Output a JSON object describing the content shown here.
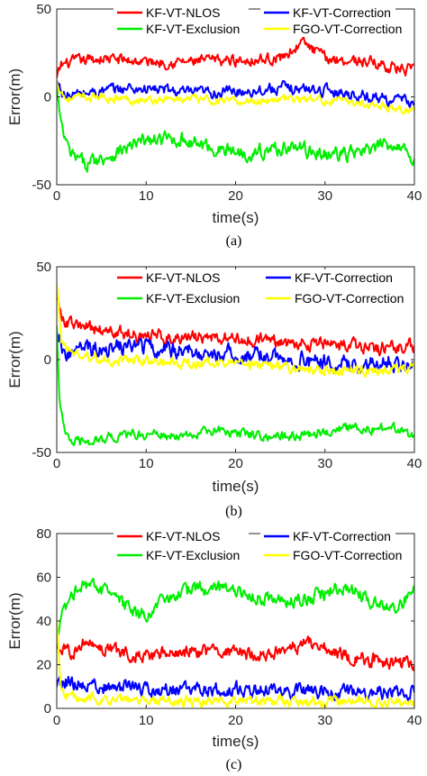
{
  "chart_data": [
    {
      "type": "line",
      "caption": "(a)",
      "xlabel": "time(s)",
      "ylabel": "Error(m)",
      "xlim": [
        0,
        40
      ],
      "ylim": [
        -50,
        50
      ],
      "xticks": [
        0,
        10,
        20,
        30,
        40
      ],
      "yticks": [
        -50,
        0,
        50
      ],
      "grid": false,
      "legend": "top",
      "legend_columns": 2,
      "series": [
        {
          "name": "KF-VT-NLOS",
          "color": "#ff0000",
          "noise": 3.5,
          "points": [
            [
              0,
              10
            ],
            [
              0.5,
              18
            ],
            [
              2,
              20
            ],
            [
              5,
              22
            ],
            [
              10,
              20
            ],
            [
              15,
              20
            ],
            [
              20,
              21
            ],
            [
              25,
              22
            ],
            [
              27.5,
              31
            ],
            [
              30,
              22
            ],
            [
              35,
              20
            ],
            [
              40,
              14
            ]
          ]
        },
        {
          "name": "KF-VT-Correction",
          "color": "#0000ff",
          "noise": 3.5,
          "points": [
            [
              0,
              8
            ],
            [
              1,
              0
            ],
            [
              3,
              2
            ],
            [
              8,
              5
            ],
            [
              12,
              4
            ],
            [
              15,
              2
            ],
            [
              20,
              3
            ],
            [
              25,
              5
            ],
            [
              30,
              4
            ],
            [
              35,
              0
            ],
            [
              40,
              -3
            ]
          ]
        },
        {
          "name": "KF-VT-Exclusion",
          "color": "#00ee00",
          "noise": 4.5,
          "points": [
            [
              0,
              5
            ],
            [
              0.5,
              -18
            ],
            [
              1.5,
              -33
            ],
            [
              3,
              -38
            ],
            [
              6,
              -33
            ],
            [
              10,
              -25
            ],
            [
              14,
              -24
            ],
            [
              18,
              -30
            ],
            [
              22,
              -32
            ],
            [
              26,
              -28
            ],
            [
              30,
              -33
            ],
            [
              34,
              -32
            ],
            [
              38,
              -26
            ],
            [
              40,
              -35
            ]
          ]
        },
        {
          "name": "FGO-VT-Correction",
          "color": "#ffff00",
          "noise": 2.5,
          "points": [
            [
              0,
              8
            ],
            [
              1,
              -1
            ],
            [
              5,
              0
            ],
            [
              10,
              -2
            ],
            [
              15,
              -1
            ],
            [
              20,
              -3
            ],
            [
              25,
              -1
            ],
            [
              30,
              -2
            ],
            [
              35,
              -4
            ],
            [
              40,
              -8
            ]
          ]
        }
      ]
    },
    {
      "type": "line",
      "caption": "(b)",
      "xlabel": "time(s)",
      "ylabel": "Error(m)",
      "xlim": [
        0,
        40
      ],
      "ylim": [
        -50,
        50
      ],
      "xticks": [
        0,
        10,
        20,
        30,
        40
      ],
      "yticks": [
        -50,
        0,
        50
      ],
      "grid": false,
      "legend": "top",
      "legend_columns": 2,
      "series": [
        {
          "name": "KF-VT-NLOS",
          "color": "#ff0000",
          "noise": 4,
          "points": [
            [
              0,
              38
            ],
            [
              0.5,
              22
            ],
            [
              2,
              18
            ],
            [
              5,
              16
            ],
            [
              10,
              13
            ],
            [
              15,
              12
            ],
            [
              20,
              11
            ],
            [
              25,
              10
            ],
            [
              30,
              8
            ],
            [
              35,
              6
            ],
            [
              40,
              8
            ]
          ]
        },
        {
          "name": "KF-VT-Correction",
          "color": "#0000ff",
          "noise": 5,
          "points": [
            [
              0,
              18
            ],
            [
              1,
              2
            ],
            [
              3,
              6
            ],
            [
              8,
              7
            ],
            [
              12,
              6
            ],
            [
              15,
              4
            ],
            [
              20,
              3
            ],
            [
              25,
              1
            ],
            [
              30,
              -2
            ],
            [
              35,
              -3
            ],
            [
              40,
              0
            ]
          ]
        },
        {
          "name": "KF-VT-Exclusion",
          "color": "#00ee00",
          "noise": 3,
          "points": [
            [
              0,
              20
            ],
            [
              0.3,
              -20
            ],
            [
              0.8,
              -38
            ],
            [
              2,
              -45
            ],
            [
              6,
              -42
            ],
            [
              10,
              -40
            ],
            [
              14,
              -42
            ],
            [
              18,
              -38
            ],
            [
              22,
              -40
            ],
            [
              26,
              -42
            ],
            [
              30,
              -38
            ],
            [
              34,
              -37
            ],
            [
              38,
              -38
            ],
            [
              40,
              -42
            ]
          ]
        },
        {
          "name": "FGO-VT-Correction",
          "color": "#ffff00",
          "noise": 3,
          "points": [
            [
              0,
              42
            ],
            [
              0.5,
              10
            ],
            [
              2,
              3
            ],
            [
              6,
              0
            ],
            [
              10,
              -1
            ],
            [
              15,
              -2
            ],
            [
              20,
              -2
            ],
            [
              25,
              -4
            ],
            [
              30,
              -6
            ],
            [
              35,
              -6
            ],
            [
              40,
              -5
            ]
          ]
        }
      ]
    },
    {
      "type": "line",
      "caption": "(c)",
      "xlabel": "time(s)",
      "ylabel": "Error(m)",
      "xlim": [
        0,
        40
      ],
      "ylim": [
        0,
        80
      ],
      "xticks": [
        0,
        10,
        20,
        30,
        40
      ],
      "yticks": [
        0,
        20,
        40,
        60,
        80
      ],
      "grid": false,
      "legend": "top",
      "legend_columns": 2,
      "series": [
        {
          "name": "KF-VT-NLOS",
          "color": "#ff0000",
          "noise": 3.5,
          "points": [
            [
              0,
              30
            ],
            [
              1,
              25
            ],
            [
              3,
              30
            ],
            [
              6,
              27
            ],
            [
              10,
              24
            ],
            [
              15,
              26
            ],
            [
              20,
              25
            ],
            [
              25,
              26
            ],
            [
              28,
              30
            ],
            [
              32,
              24
            ],
            [
              36,
              22
            ],
            [
              40,
              20
            ]
          ]
        },
        {
          "name": "KF-VT-Correction",
          "color": "#0000ff",
          "noise": 3.5,
          "points": [
            [
              0,
              10
            ],
            [
              1,
              12
            ],
            [
              5,
              10
            ],
            [
              10,
              9
            ],
            [
              15,
              8
            ],
            [
              20,
              9
            ],
            [
              25,
              8
            ],
            [
              30,
              8
            ],
            [
              35,
              7
            ],
            [
              40,
              8
            ]
          ]
        },
        {
          "name": "KF-VT-Exclusion",
          "color": "#00ee00",
          "noise": 3.5,
          "points": [
            [
              0,
              30
            ],
            [
              0.5,
              42
            ],
            [
              1.5,
              52
            ],
            [
              3,
              58
            ],
            [
              6,
              52
            ],
            [
              9,
              42
            ],
            [
              12,
              48
            ],
            [
              16,
              56
            ],
            [
              20,
              54
            ],
            [
              24,
              50
            ],
            [
              28,
              50
            ],
            [
              32,
              56
            ],
            [
              36,
              48
            ],
            [
              38,
              46
            ],
            [
              40,
              55
            ]
          ]
        },
        {
          "name": "FGO-VT-Correction",
          "color": "#ffff00",
          "noise": 2.5,
          "points": [
            [
              0,
              40
            ],
            [
              0.5,
              8
            ],
            [
              2,
              5
            ],
            [
              6,
              4
            ],
            [
              10,
              4
            ],
            [
              15,
              3
            ],
            [
              20,
              3
            ],
            [
              25,
              3
            ],
            [
              30,
              3
            ],
            [
              35,
              3
            ],
            [
              40,
              2
            ]
          ]
        }
      ]
    }
  ]
}
